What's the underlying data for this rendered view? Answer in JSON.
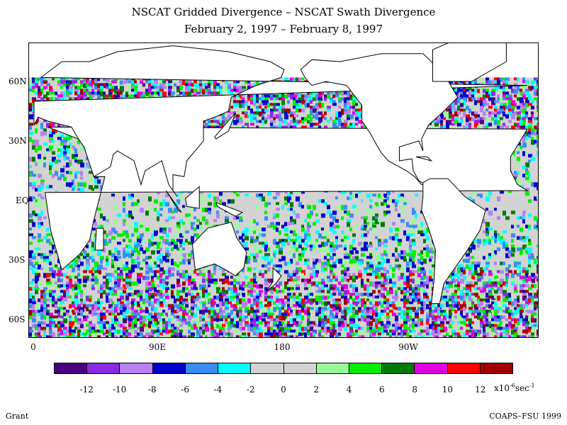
{
  "title_line1": "NSCAT Gridded Divergence – NSCAT Swath Divergence",
  "title_line2": "February 2, 1997 – February 8, 1997",
  "lat_labels": [
    "60N",
    "30N",
    "EQ",
    "30S",
    "60S"
  ],
  "lon_labels": [
    "0",
    "90E",
    "180",
    "90W"
  ],
  "colorbar": {
    "colors": [
      "#4b0082",
      "#8a2be2",
      "#b77ff0",
      "#0000cd",
      "#3a8cf0",
      "#00ffff",
      "#d3d3d3",
      "#d3d3d3",
      "#98fb98",
      "#00ee00",
      "#007a00",
      "#e000e0",
      "#ff0000",
      "#a00000"
    ],
    "tick_labels": [
      "-12",
      "-10",
      "-8",
      "-6",
      "-4",
      "-2",
      "0",
      "2",
      "4",
      "6",
      "8",
      "10",
      "12"
    ],
    "units_prefix": "x10",
    "units_exp": "-6",
    "units_suffix": "sec",
    "units_suffix_exp": "-1"
  },
  "footer_left": "Grant",
  "footer_right": "COAPS–FSU 1999",
  "map": {
    "land_color": "#ffffff",
    "ocean_neutral_color": "#d3d3d3",
    "coastline_color": "#000000"
  }
}
